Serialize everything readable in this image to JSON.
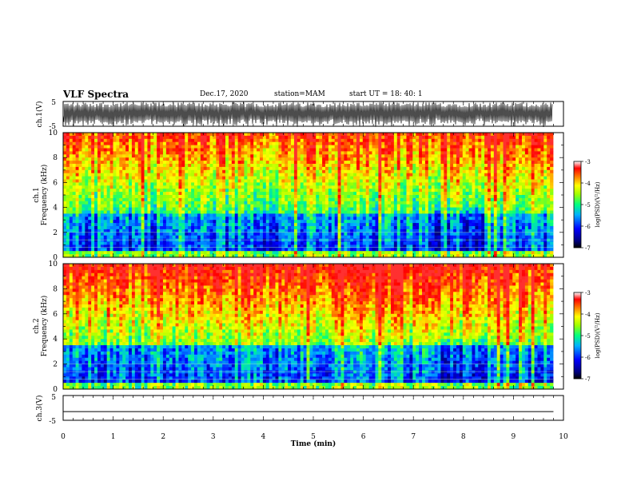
{
  "header": {
    "title": "VLF Spectra",
    "date": "Dec.17, 2020",
    "station": "station=MAM",
    "start": "start UT = 18: 40: 1"
  },
  "chart_data": [
    {
      "type": "line",
      "panel": "ch1-waveform",
      "ylabel": "ch.1(V)",
      "yticks": [
        "5",
        "-5"
      ],
      "ylim": [
        -5,
        5
      ],
      "xlim": [
        0,
        10
      ],
      "description_of_trace": "dense oscillating waveform spanning roughly -5 to 5 V over the full time range"
    },
    {
      "type": "heatmap",
      "panel": "ch1-spectrogram",
      "ylabel_lines": [
        "ch.1",
        "Frequency (kHz)"
      ],
      "yticks": [
        "0",
        "2",
        "4",
        "6",
        "8",
        "10"
      ],
      "ylim": [
        0,
        10
      ],
      "xlim": [
        0,
        10
      ],
      "colorbar": {
        "label": "log(PSD)(V²/Hz)",
        "ticks": [
          "-3",
          "-4",
          "-5",
          "-6",
          "-7"
        ],
        "range": [
          -7,
          -3
        ]
      },
      "colors": [
        "#000080",
        "#0000ff",
        "#00b0ff",
        "#00ff80",
        "#a0ff00",
        "#ffff00",
        "#ff8000",
        "#ff0000",
        "#ffffff"
      ]
    },
    {
      "type": "heatmap",
      "panel": "ch2-spectrogram",
      "ylabel_lines": [
        "ch.2",
        "Frequency (kHz)"
      ],
      "yticks": [
        "0",
        "2",
        "4",
        "6",
        "8",
        "10"
      ],
      "ylim": [
        0,
        10
      ],
      "xlim": [
        0,
        10
      ],
      "colorbar": {
        "label": "log(PSD)(V²/Hz)",
        "ticks": [
          "-3",
          "-4",
          "-5",
          "-6",
          "-7"
        ],
        "range": [
          -7,
          -3
        ]
      }
    },
    {
      "type": "line",
      "panel": "ch3-waveform",
      "ylabel": "ch.3(V)",
      "yticks": [
        "5",
        "-5"
      ],
      "ylim": [
        -5,
        5
      ],
      "xlim": [
        0,
        10
      ],
      "x": [
        0,
        9.8
      ],
      "y": [
        -1.5,
        -1.5
      ]
    }
  ],
  "x_axis": {
    "label": "Time (min)",
    "ticks": [
      "0",
      "1",
      "2",
      "3",
      "4",
      "5",
      "6",
      "7",
      "8",
      "9",
      "10"
    ]
  }
}
